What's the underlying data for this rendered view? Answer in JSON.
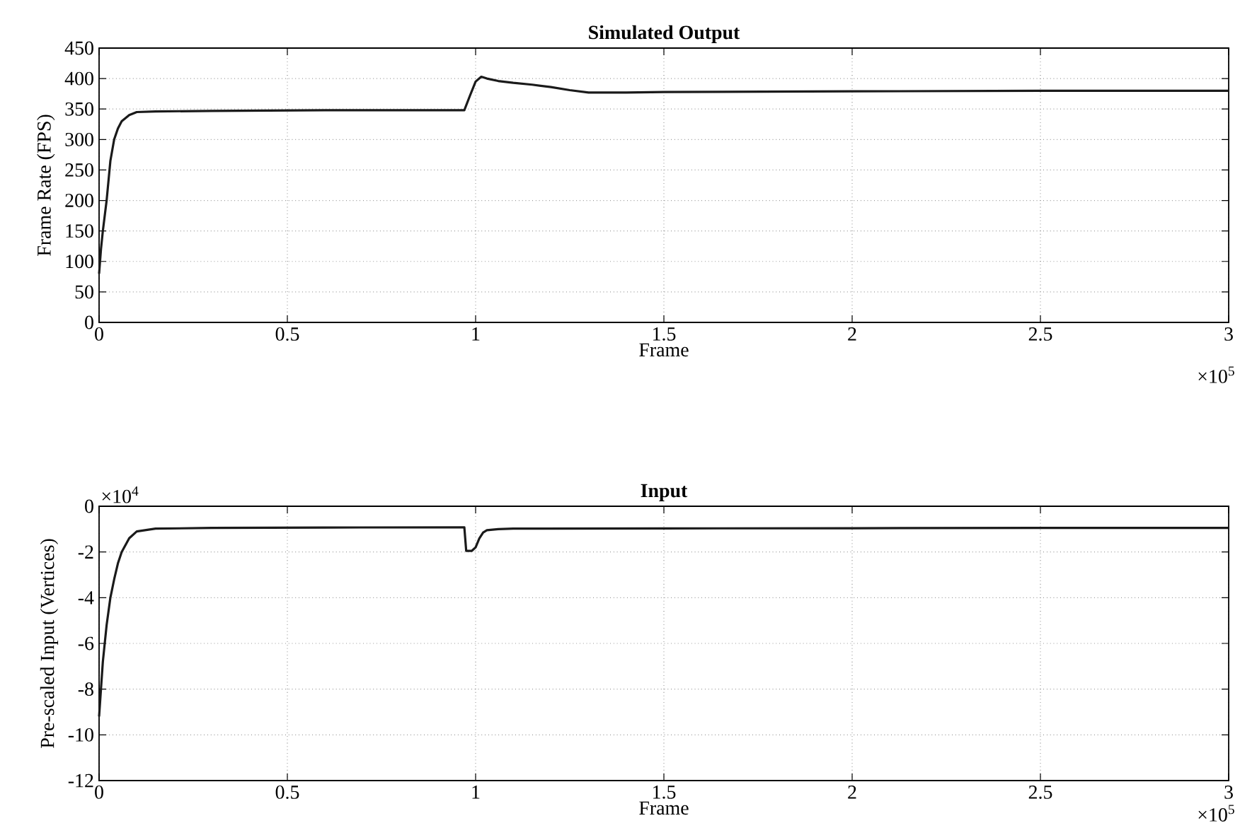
{
  "chart_data": [
    {
      "type": "line",
      "title": "Simulated Output",
      "xlabel": "Frame",
      "ylabel": "Frame Rate (FPS)",
      "annotations": [
        "×10$^{5}$"
      ],
      "x": [
        0,
        0.005,
        0.01,
        0.02,
        0.03,
        0.04,
        0.05,
        0.06,
        0.08,
        0.1,
        0.15,
        0.3,
        0.6,
        0.97,
        0.985,
        1.0,
        1.015,
        1.03,
        1.06,
        1.1,
        1.15,
        1.2,
        1.25,
        1.3,
        1.4,
        1.5,
        2.0,
        2.5,
        3.0
      ],
      "series": [
        {
          "color": "#1a1a1a",
          "values": [
            80,
            120,
            150,
            200,
            265,
            300,
            318,
            330,
            340,
            345,
            346,
            347,
            348,
            348,
            372,
            395,
            403,
            400,
            396,
            393,
            390,
            386,
            381,
            377,
            377,
            378,
            379,
            380,
            380
          ]
        }
      ],
      "xlim": [
        0,
        3
      ],
      "ylim": [
        0,
        450
      ],
      "xticks": [
        0,
        0.5,
        1,
        1.5,
        2,
        2.5,
        3
      ],
      "yticks": [
        0,
        50,
        100,
        150,
        200,
        250,
        300,
        350,
        400,
        450
      ],
      "grid": true,
      "line_style": "solid",
      "marker": "none"
    },
    {
      "type": "line",
      "title": "Input",
      "xlabel": "Frame",
      "ylabel": "Pre-scaled Input (Vertices)",
      "annotations": [
        "×10$^{4}$",
        "×10$^{5}$"
      ],
      "x": [
        0,
        0.005,
        0.01,
        0.02,
        0.03,
        0.04,
        0.05,
        0.06,
        0.08,
        0.1,
        0.15,
        0.3,
        0.6,
        0.97,
        0.975,
        0.99,
        1.0,
        1.01,
        1.02,
        1.03,
        1.06,
        1.1,
        1.5,
        2.0,
        2.5,
        3.0
      ],
      "series": [
        {
          "color": "#1a1a1a",
          "values": [
            -9.2,
            -8.0,
            -6.8,
            -5.2,
            -4.0,
            -3.2,
            -2.5,
            -2.0,
            -1.4,
            -1.1,
            -0.98,
            -0.95,
            -0.93,
            -0.92,
            -1.95,
            -1.95,
            -1.8,
            -1.4,
            -1.15,
            -1.05,
            -1.0,
            -0.98,
            -0.97,
            -0.96,
            -0.95,
            -0.95
          ]
        }
      ],
      "xlim": [
        0,
        3
      ],
      "ylim": [
        -12,
        0
      ],
      "xticks": [
        0,
        0.5,
        1,
        1.5,
        2,
        2.5,
        3
      ],
      "yticks": [
        -12,
        -10,
        -8,
        -6,
        -4,
        -2,
        0
      ],
      "grid": true,
      "line_style": "solid",
      "marker": "none"
    }
  ]
}
